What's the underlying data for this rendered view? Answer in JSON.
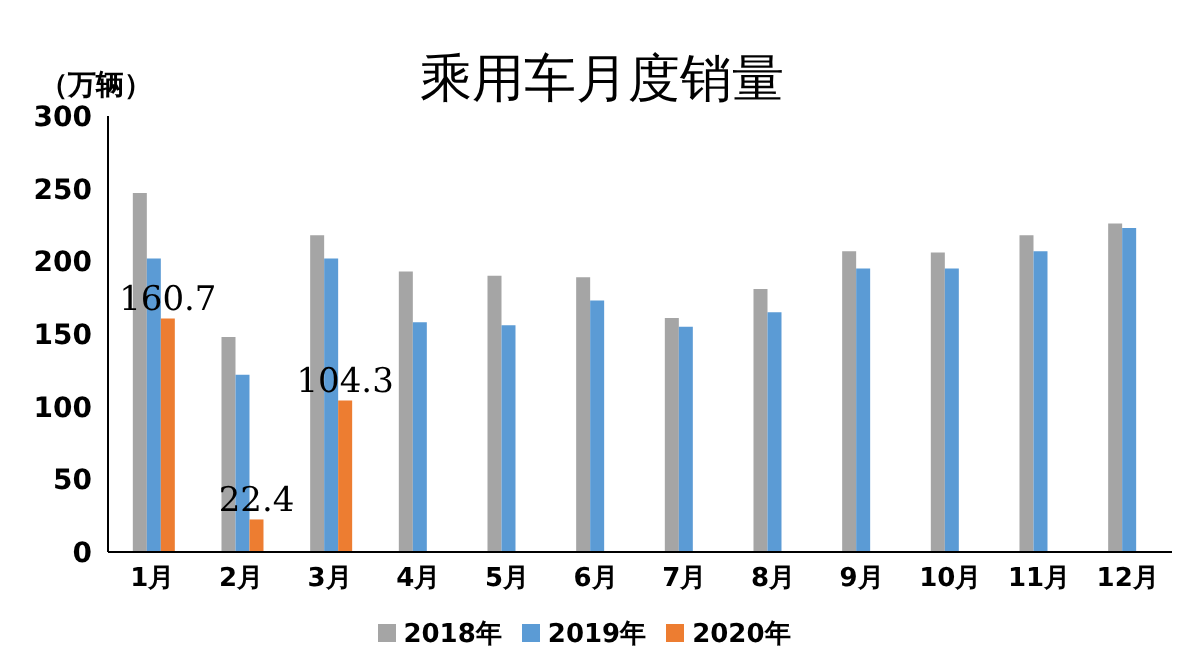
{
  "chart_data": {
    "type": "bar",
    "title": "乘用车月度销量",
    "ylabel": "（万辆）",
    "categories": [
      "1月",
      "2月",
      "3月",
      "4月",
      "5月",
      "6月",
      "7月",
      "8月",
      "9月",
      "10月",
      "11月",
      "12月"
    ],
    "series": [
      {
        "name": "2018年",
        "color": "#a5a5a5",
        "values": [
          247,
          148,
          218,
          193,
          190,
          189,
          161,
          181,
          207,
          206,
          218,
          226
        ]
      },
      {
        "name": "2019年",
        "color": "#5b9bd5",
        "values": [
          202,
          122,
          202,
          158,
          156,
          173,
          155,
          165,
          195,
          195,
          207,
          223
        ]
      },
      {
        "name": "2020年",
        "color": "#ed7d31",
        "values": [
          160.7,
          22.4,
          104.3,
          null,
          null,
          null,
          null,
          null,
          null,
          null,
          null,
          null
        ],
        "value_labels": [
          "160.7",
          "22.4",
          "104.3",
          null,
          null,
          null,
          null,
          null,
          null,
          null,
          null,
          null
        ]
      }
    ],
    "ylim": [
      0,
      300
    ],
    "yticks": [
      0,
      50,
      100,
      150,
      200,
      250,
      300
    ],
    "grid": false,
    "legend": "bottom"
  }
}
